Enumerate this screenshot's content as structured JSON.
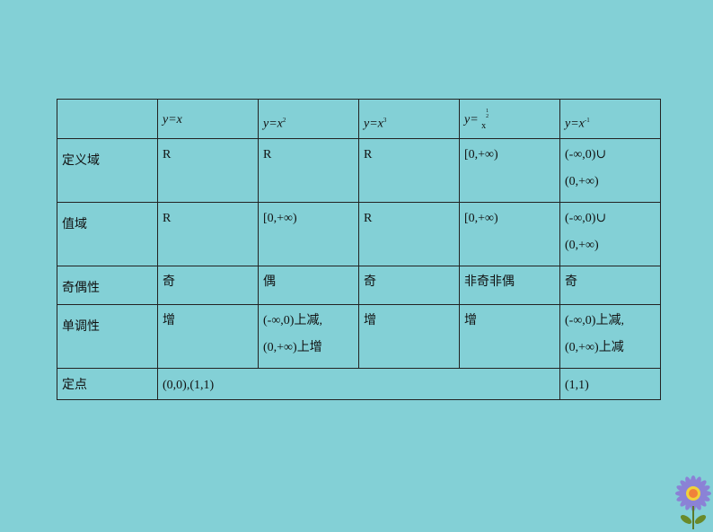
{
  "header": {
    "corner": "",
    "functions": [
      {
        "base": "y=x",
        "exp": ""
      },
      {
        "base": "y=x",
        "exp": "2"
      },
      {
        "base": "y=x",
        "exp": "3"
      },
      {
        "base": "y=",
        "x": "x",
        "exp_num": "1",
        "exp_den": "2"
      },
      {
        "base": "y=x",
        "exp": "-1"
      }
    ]
  },
  "rows": [
    {
      "label": "定义域",
      "cells": [
        [
          "R"
        ],
        [
          "R"
        ],
        [
          "R"
        ],
        [
          "[0,+∞)"
        ],
        [
          "(-∞,0)∪",
          "(0,+∞)"
        ]
      ]
    },
    {
      "label": "值域",
      "cells": [
        [
          "R"
        ],
        [
          "[0,+∞)"
        ],
        [
          "R"
        ],
        [
          "[0,+∞)"
        ],
        [
          "(-∞,0)∪",
          "(0,+∞)"
        ]
      ]
    },
    {
      "label": "奇偶性",
      "cells": [
        [
          "奇"
        ],
        [
          "偶"
        ],
        [
          "奇"
        ],
        [
          "非奇非偶"
        ],
        [
          "奇"
        ]
      ]
    },
    {
      "label": "单调性",
      "cells": [
        [
          "增"
        ],
        [
          "(-∞,0)上减,",
          "(0,+∞)上增"
        ],
        [
          "增"
        ],
        [
          "增"
        ],
        [
          "(-∞,0)上减,",
          "(0,+∞)上减"
        ]
      ]
    }
  ],
  "fixed_point": {
    "label": "定点",
    "common": "(0,0),(1,1)",
    "last": "(1,1)"
  },
  "colors": {
    "background": "#83d0d6",
    "border": "#222222"
  },
  "decoration": "flower-icon"
}
